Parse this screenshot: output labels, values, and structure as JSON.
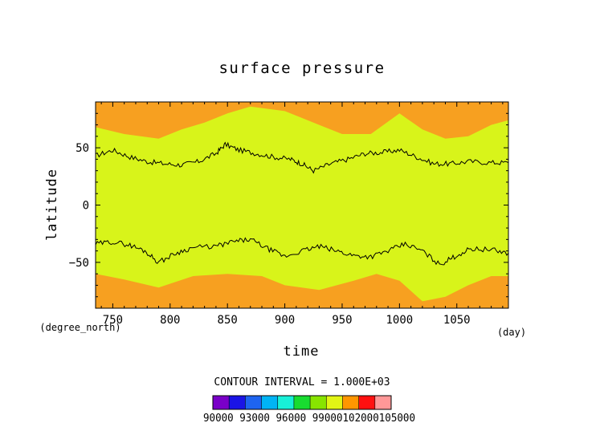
{
  "chart_data": {
    "type": "heatmap",
    "title": "surface pressure",
    "xlabel": "time",
    "ylabel": "latitude",
    "x_unit": "(day)",
    "y_unit": "(degree_north)",
    "xlim": [
      735,
      1095
    ],
    "ylim": [
      -90,
      90
    ],
    "x_ticks": [
      "750",
      "800",
      "850",
      "900",
      "950",
      "1000",
      "1050"
    ],
    "y_ticks": [
      "50",
      "0",
      "−50"
    ],
    "contour_interval_text": "CONTOUR INTERVAL = 1.000E+03",
    "colorbar": {
      "levels": [
        90000,
        91500,
        93000,
        94500,
        96000,
        97500,
        99000,
        100500,
        102000,
        103500,
        105000
      ],
      "colors": [
        "#7a00c8",
        "#1a14e6",
        "#1e64f0",
        "#00b4f5",
        "#18f0d8",
        "#18dc30",
        "#88e400",
        "#e2f515",
        "#ff9600",
        "#ff1010",
        "#ff9898"
      ],
      "labels": [
        "90000",
        "93000",
        "96000",
        "99000",
        "102000",
        "105000"
      ],
      "label_text": "90000 93000 96000 99000102000105000"
    },
    "background_color": "#d8f41a",
    "high_pressure_color": "#f7a020",
    "north_orange_boundary": [
      {
        "x": 735,
        "y": 68
      },
      {
        "x": 760,
        "y": 62
      },
      {
        "x": 790,
        "y": 58
      },
      {
        "x": 810,
        "y": 66
      },
      {
        "x": 830,
        "y": 72
      },
      {
        "x": 850,
        "y": 80
      },
      {
        "x": 870,
        "y": 86
      },
      {
        "x": 900,
        "y": 82
      },
      {
        "x": 930,
        "y": 70
      },
      {
        "x": 950,
        "y": 62
      },
      {
        "x": 975,
        "y": 62
      },
      {
        "x": 1000,
        "y": 80
      },
      {
        "x": 1020,
        "y": 66
      },
      {
        "x": 1040,
        "y": 58
      },
      {
        "x": 1060,
        "y": 60
      },
      {
        "x": 1080,
        "y": 70
      },
      {
        "x": 1095,
        "y": 74
      }
    ],
    "south_orange_boundary": [
      {
        "x": 735,
        "y": -60
      },
      {
        "x": 760,
        "y": -65
      },
      {
        "x": 790,
        "y": -72
      },
      {
        "x": 820,
        "y": -62
      },
      {
        "x": 850,
        "y": -60
      },
      {
        "x": 880,
        "y": -62
      },
      {
        "x": 900,
        "y": -70
      },
      {
        "x": 930,
        "y": -74
      },
      {
        "x": 960,
        "y": -66
      },
      {
        "x": 980,
        "y": -60
      },
      {
        "x": 1000,
        "y": -66
      },
      {
        "x": 1020,
        "y": -84
      },
      {
        "x": 1040,
        "y": -80
      },
      {
        "x": 1060,
        "y": -70
      },
      {
        "x": 1080,
        "y": -62
      },
      {
        "x": 1095,
        "y": -62
      }
    ],
    "north_contour": [
      {
        "x": 735,
        "y": 43
      },
      {
        "x": 750,
        "y": 48
      },
      {
        "x": 765,
        "y": 42
      },
      {
        "x": 780,
        "y": 38
      },
      {
        "x": 795,
        "y": 36
      },
      {
        "x": 810,
        "y": 35
      },
      {
        "x": 825,
        "y": 38
      },
      {
        "x": 840,
        "y": 45
      },
      {
        "x": 848,
        "y": 53
      },
      {
        "x": 860,
        "y": 48
      },
      {
        "x": 875,
        "y": 45
      },
      {
        "x": 890,
        "y": 42
      },
      {
        "x": 905,
        "y": 40
      },
      {
        "x": 915,
        "y": 36
      },
      {
        "x": 925,
        "y": 30
      },
      {
        "x": 940,
        "y": 36
      },
      {
        "x": 955,
        "y": 40
      },
      {
        "x": 970,
        "y": 45
      },
      {
        "x": 985,
        "y": 46
      },
      {
        "x": 1000,
        "y": 48
      },
      {
        "x": 1015,
        "y": 42
      },
      {
        "x": 1030,
        "y": 36
      },
      {
        "x": 1045,
        "y": 36
      },
      {
        "x": 1060,
        "y": 38
      },
      {
        "x": 1080,
        "y": 37
      },
      {
        "x": 1095,
        "y": 37
      }
    ],
    "south_contour": [
      {
        "x": 735,
        "y": -34
      },
      {
        "x": 750,
        "y": -32
      },
      {
        "x": 765,
        "y": -35
      },
      {
        "x": 778,
        "y": -40
      },
      {
        "x": 790,
        "y": -50
      },
      {
        "x": 805,
        "y": -42
      },
      {
        "x": 820,
        "y": -37
      },
      {
        "x": 840,
        "y": -36
      },
      {
        "x": 855,
        "y": -32
      },
      {
        "x": 870,
        "y": -30
      },
      {
        "x": 885,
        "y": -38
      },
      {
        "x": 900,
        "y": -45
      },
      {
        "x": 915,
        "y": -40
      },
      {
        "x": 930,
        "y": -36
      },
      {
        "x": 945,
        "y": -40
      },
      {
        "x": 960,
        "y": -44
      },
      {
        "x": 975,
        "y": -45
      },
      {
        "x": 990,
        "y": -40
      },
      {
        "x": 1005,
        "y": -34
      },
      {
        "x": 1020,
        "y": -40
      },
      {
        "x": 1035,
        "y": -52
      },
      {
        "x": 1048,
        "y": -45
      },
      {
        "x": 1062,
        "y": -38
      },
      {
        "x": 1080,
        "y": -39
      },
      {
        "x": 1095,
        "y": -42
      }
    ]
  }
}
